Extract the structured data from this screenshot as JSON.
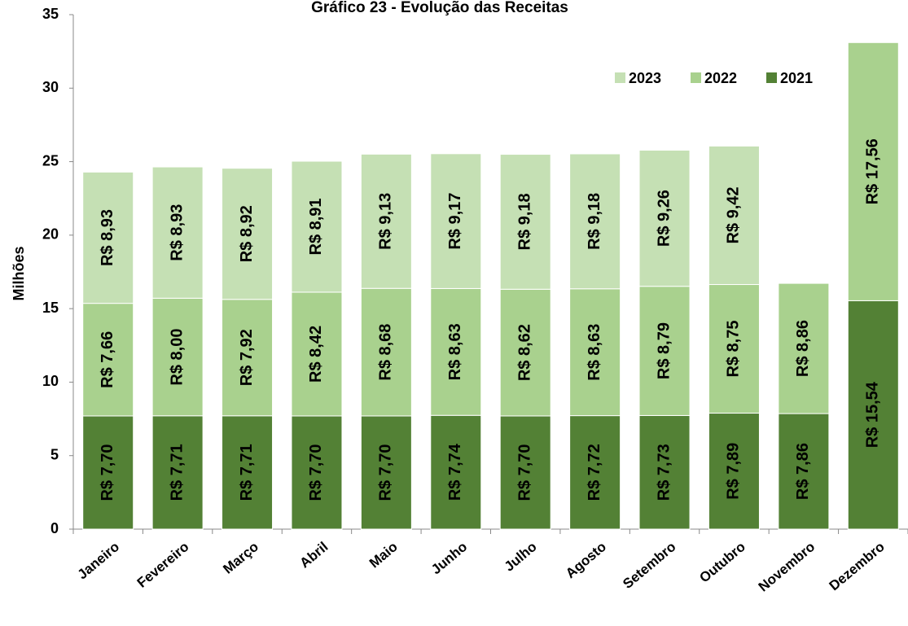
{
  "chart_data": {
    "type": "stacked_bar",
    "title": "Gráfico 23 - Evolução das Receitas",
    "y_label": "Milhões",
    "categories": [
      "Janeiro",
      "Fevereiro",
      "Março",
      "Abril",
      "Maio",
      "Junho",
      "Julho",
      "Agosto",
      "Setembro",
      "Outubro",
      "Novembro",
      "Dezembro"
    ],
    "series": [
      {
        "name": "2021",
        "color": "#538135",
        "values": [
          7.7,
          7.71,
          7.71,
          7.7,
          7.7,
          7.74,
          7.7,
          7.72,
          7.73,
          7.89,
          7.86,
          15.54
        ],
        "value_labels": [
          "R$ 7,70",
          "R$ 7,71",
          "R$ 7,71",
          "R$ 7,70",
          "R$ 7,70",
          "R$ 7,74",
          "R$ 7,70",
          "R$ 7,72",
          "R$ 7,73",
          "R$ 7,89",
          "R$ 7,86",
          "R$ 15,54"
        ]
      },
      {
        "name": "2022",
        "color": "#a9d18e",
        "values": [
          7.66,
          8.0,
          7.92,
          8.42,
          8.68,
          8.63,
          8.62,
          8.63,
          8.79,
          8.75,
          8.86,
          17.56
        ],
        "value_labels": [
          "R$ 7,66",
          "R$ 8,00",
          "R$ 7,92",
          "R$ 8,42",
          "R$ 8,68",
          "R$ 8,63",
          "R$ 8,62",
          "R$ 8,63",
          "R$ 8,79",
          "R$ 8,75",
          "R$ 8,86",
          "R$ 17,56"
        ]
      },
      {
        "name": "2023",
        "color": "#c5e0b4",
        "values": [
          8.93,
          8.93,
          8.92,
          8.91,
          9.13,
          9.17,
          9.18,
          9.18,
          9.26,
          9.42,
          null,
          null
        ],
        "value_labels": [
          "R$ 8,93",
          "R$ 8,93",
          "R$ 8,92",
          "R$ 8,91",
          "R$ 9,13",
          "R$ 9,17",
          "R$ 9,18",
          "R$ 9,18",
          "R$ 9,26",
          "R$ 9,42",
          null,
          null
        ]
      }
    ],
    "ylim": [
      0,
      35
    ],
    "yticks": [
      0,
      5,
      10,
      15,
      20,
      25,
      30,
      35
    ],
    "legend": "upper right"
  }
}
